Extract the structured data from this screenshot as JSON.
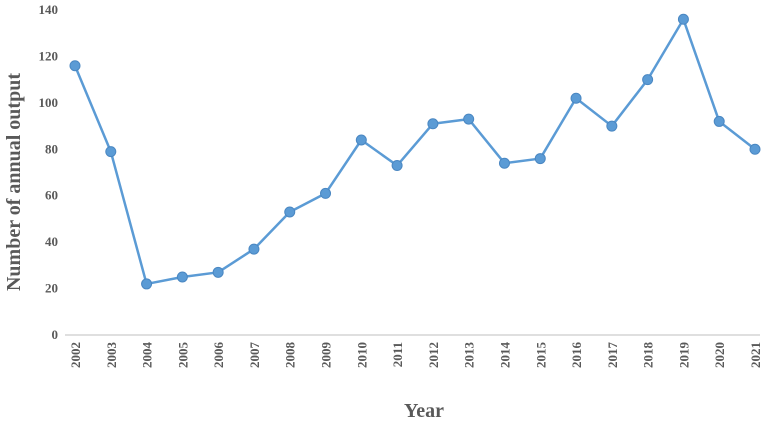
{
  "chart_data": {
    "type": "line",
    "title": "",
    "xlabel": "Year",
    "ylabel": "Number of annual output",
    "x": [
      "2002",
      "2003",
      "2004",
      "2005",
      "2006",
      "2007",
      "2008",
      "2009",
      "2010",
      "2011",
      "2012",
      "2013",
      "2014",
      "2015",
      "2016",
      "2017",
      "2018",
      "2019",
      "2020",
      "2021"
    ],
    "series": [
      {
        "values": [
          116,
          79,
          22,
          25,
          27,
          37,
          53,
          61,
          84,
          73,
          91,
          93,
          74,
          76,
          102,
          90,
          110,
          136,
          92,
          80
        ]
      }
    ],
    "ylim": [
      0,
      140
    ],
    "yticks": [
      0,
      20,
      40,
      60,
      80,
      100,
      120,
      140
    ],
    "grid": false,
    "legend": "none",
    "line_color": "#5b9bd5",
    "marker_color": "#5b9bd5"
  }
}
